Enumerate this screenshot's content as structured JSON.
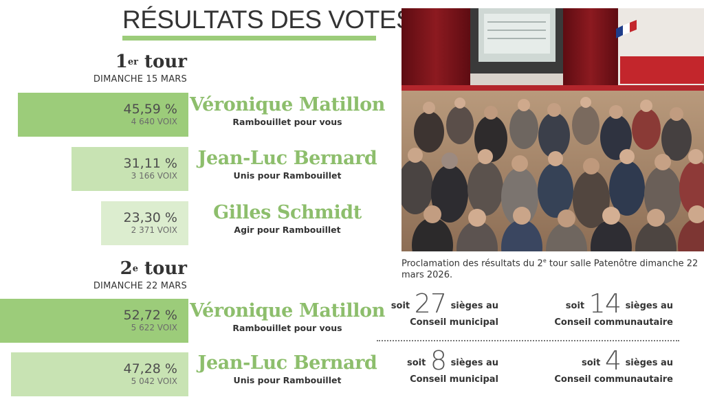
{
  "title": "RÉSULTATS DES VOTES",
  "round1": {
    "tour_number": "1",
    "tour_suffix": "er",
    "tour_word": "tour",
    "date": "DIMANCHE 15 MARS",
    "candidates": [
      {
        "name": "Véronique Matillon",
        "list": "Rambouillet pour vous",
        "percent": "45,59 %",
        "votes": "4 640 VOIX",
        "share": 45.59,
        "color": "#9ccc7a"
      },
      {
        "name": "Jean-Luc Bernard",
        "list": "Unis pour Rambouillet",
        "percent": "31,11 %",
        "votes": "3 166 VOIX",
        "share": 31.11,
        "color": "#c8e3b3"
      },
      {
        "name": "Gilles Schmidt",
        "list": "Agir pour Rambouillet",
        "percent": "23,30 %",
        "votes": "2 371 VOIX",
        "share": 23.3,
        "color": "#dcedcf"
      }
    ]
  },
  "round2": {
    "tour_number": "2",
    "tour_suffix": "e",
    "tour_word": "tour",
    "date": "DIMANCHE 22 MARS",
    "candidates": [
      {
        "name": "Véronique Matillon",
        "list": "Rambouillet pour vous",
        "percent": "52,72 %",
        "votes": "5 622 VOIX",
        "share": 52.72,
        "color": "#9ccc7a"
      },
      {
        "name": "Jean-Luc Bernard",
        "list": "Unis pour Rambouillet",
        "percent": "47,28 %",
        "votes": "5 042 VOIX",
        "share": 47.28,
        "color": "#c8e3b3"
      }
    ]
  },
  "photo_caption": {
    "part1": "Proclamation des résultats du 2",
    "sup": "e",
    "part2": " tour salle Patenôtre dimanche 22 mars 2026."
  },
  "seats": {
    "prefix": "soit",
    "suffix": "sièges au",
    "matillon": {
      "municipal": {
        "count": "27",
        "body": "Conseil municipal"
      },
      "communautaire": {
        "count": "14",
        "body": "Conseil communautaire"
      }
    },
    "bernard": {
      "municipal": {
        "count": "8",
        "body": "Conseil municipal"
      },
      "communautaire": {
        "count": "4",
        "body": "Conseil communautaire"
      }
    }
  }
}
